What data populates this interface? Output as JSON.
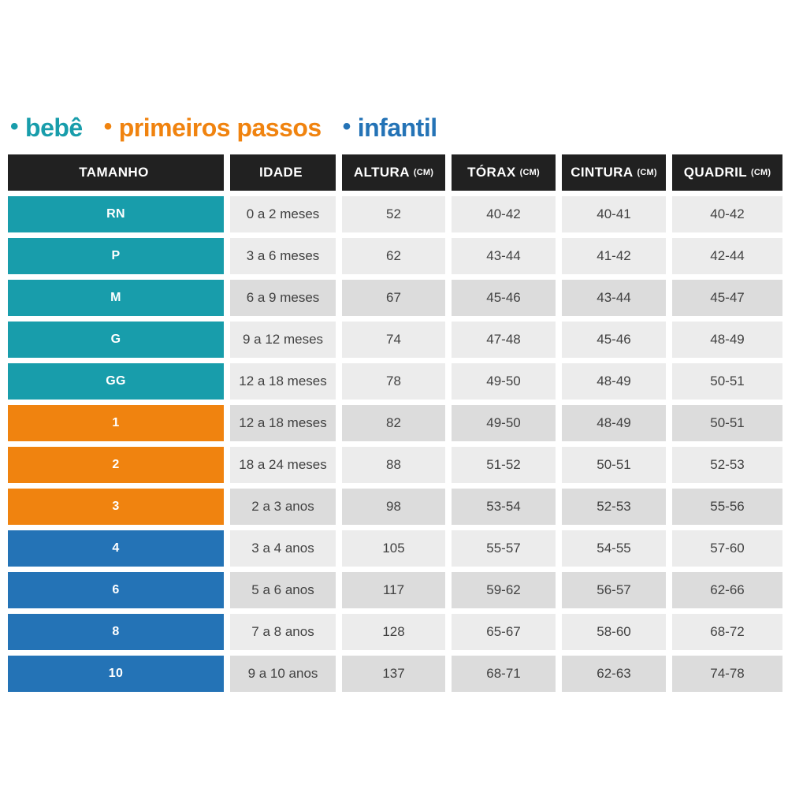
{
  "legend": {
    "bullet": "•",
    "items": [
      {
        "label": "bebê",
        "color_key": "bebe"
      },
      {
        "label": "primeiros passos",
        "color_key": "primeiros_passos"
      },
      {
        "label": "infantil",
        "color_key": "infantil"
      }
    ]
  },
  "colors": {
    "bebe": "#189dab",
    "primeiros_passos": "#f0830f",
    "infantil": "#2473b6",
    "header_bg": "#212121",
    "header_text": "#ffffff",
    "cell_light": "#ececec",
    "cell_dark": "#dcdcdc",
    "cell_text": "#414141"
  },
  "chart_data": {
    "type": "table",
    "title": "",
    "columns": [
      {
        "label": "TAMANHO",
        "unit": ""
      },
      {
        "label": "IDADE",
        "unit": ""
      },
      {
        "label": "ALTURA",
        "unit": "(CM)"
      },
      {
        "label": "TÓRAX",
        "unit": "(CM)"
      },
      {
        "label": "CINTURA",
        "unit": "(CM)"
      },
      {
        "label": "QUADRIL",
        "unit": "(CM)"
      }
    ],
    "rows": [
      {
        "tamanho": "RN",
        "idade": "0 a 2 meses",
        "altura": "52",
        "torax": "40-42",
        "cintura": "40-41",
        "quadril": "40-42",
        "group": "bebe",
        "shade": "light"
      },
      {
        "tamanho": "P",
        "idade": "3 a 6 meses",
        "altura": "62",
        "torax": "43-44",
        "cintura": "41-42",
        "quadril": "42-44",
        "group": "bebe",
        "shade": "light"
      },
      {
        "tamanho": "M",
        "idade": "6 a 9 meses",
        "altura": "67",
        "torax": "45-46",
        "cintura": "43-44",
        "quadril": "45-47",
        "group": "bebe",
        "shade": "dark"
      },
      {
        "tamanho": "G",
        "idade": "9 a 12 meses",
        "altura": "74",
        "torax": "47-48",
        "cintura": "45-46",
        "quadril": "48-49",
        "group": "bebe",
        "shade": "light"
      },
      {
        "tamanho": "GG",
        "idade": "12 a 18 meses",
        "altura": "78",
        "torax": "49-50",
        "cintura": "48-49",
        "quadril": "50-51",
        "group": "bebe",
        "shade": "light"
      },
      {
        "tamanho": "1",
        "idade": "12 a 18 meses",
        "altura": "82",
        "torax": "49-50",
        "cintura": "48-49",
        "quadril": "50-51",
        "group": "primeiros_passos",
        "shade": "dark"
      },
      {
        "tamanho": "2",
        "idade": "18 a 24 meses",
        "altura": "88",
        "torax": "51-52",
        "cintura": "50-51",
        "quadril": "52-53",
        "group": "primeiros_passos",
        "shade": "light"
      },
      {
        "tamanho": "3",
        "idade": "2 a 3 anos",
        "altura": "98",
        "torax": "53-54",
        "cintura": "52-53",
        "quadril": "55-56",
        "group": "primeiros_passos",
        "shade": "dark"
      },
      {
        "tamanho": "4",
        "idade": "3 a 4 anos",
        "altura": "105",
        "torax": "55-57",
        "cintura": "54-55",
        "quadril": "57-60",
        "group": "infantil",
        "shade": "light"
      },
      {
        "tamanho": "6",
        "idade": "5 a 6 anos",
        "altura": "117",
        "torax": "59-62",
        "cintura": "56-57",
        "quadril": "62-66",
        "group": "infantil",
        "shade": "dark"
      },
      {
        "tamanho": "8",
        "idade": "7 a 8 anos",
        "altura": "128",
        "torax": "65-67",
        "cintura": "58-60",
        "quadril": "68-72",
        "group": "infantil",
        "shade": "light"
      },
      {
        "tamanho": "10",
        "idade": "9 a 10 anos",
        "altura": "137",
        "torax": "68-71",
        "cintura": "62-63",
        "quadril": "74-78",
        "group": "infantil",
        "shade": "dark"
      }
    ]
  }
}
